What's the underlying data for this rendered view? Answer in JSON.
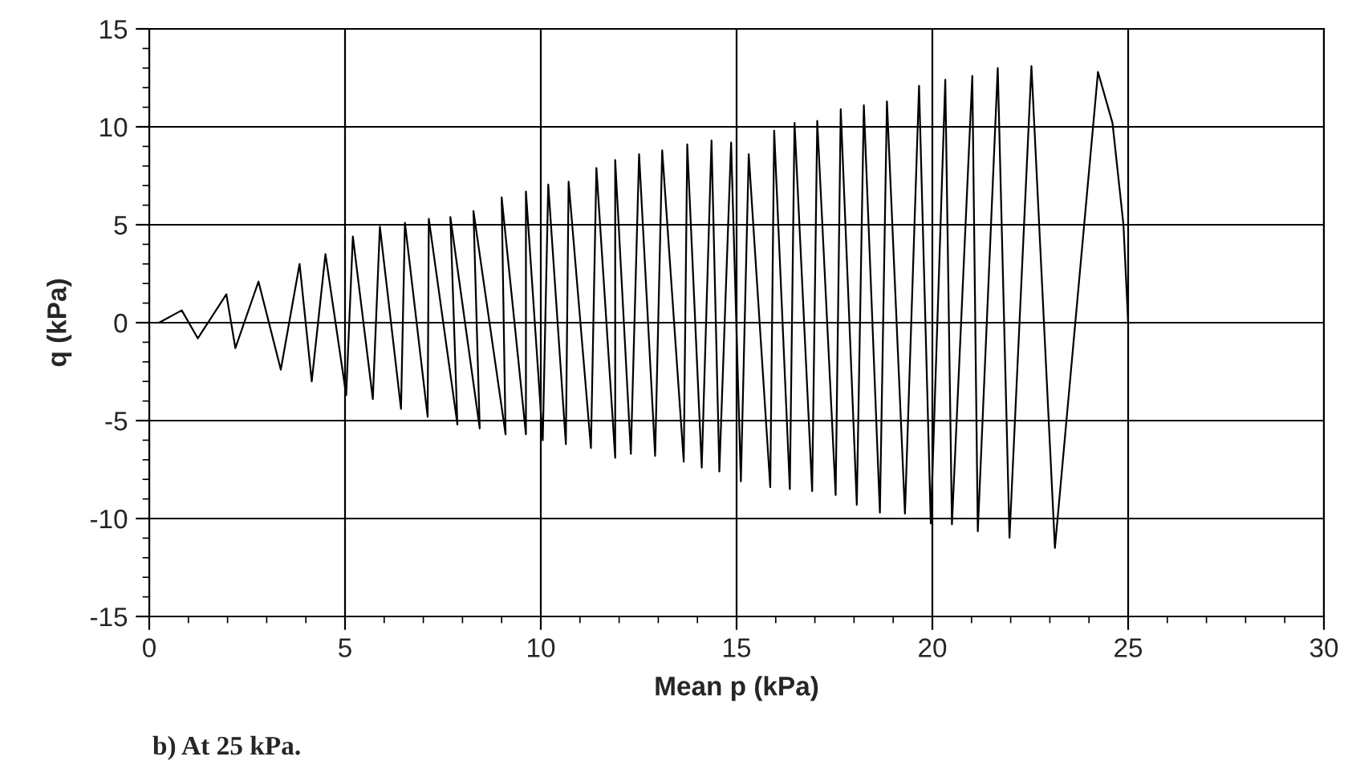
{
  "chart_data": {
    "type": "line",
    "xlabel": "Mean p (kPa)",
    "ylabel": "q (kPa)",
    "annotations": [
      "b) At 25 kPa."
    ],
    "xlim": [
      0,
      30
    ],
    "xticks": [
      0,
      5,
      10,
      15,
      20,
      25,
      30
    ],
    "ylim": [
      -15,
      15
    ],
    "yticks": [
      -15,
      -10,
      -5,
      0,
      5,
      10,
      15
    ],
    "grid": true,
    "legend": false,
    "marker": "none",
    "line_style": "solid",
    "series": [
      {
        "color": "#000000",
        "x": [
          0.25,
          0.83,
          1.24,
          1.97,
          2.2,
          2.79,
          3.36,
          3.84,
          4.15,
          4.5,
          5.03,
          5.2,
          5.71,
          5.89,
          6.43,
          6.53,
          7.11,
          7.14,
          7.87,
          7.69,
          8.44,
          8.28,
          9.1,
          9.0,
          9.62,
          9.62,
          10.05,
          10.19,
          10.64,
          10.71,
          11.28,
          11.42,
          11.9,
          11.9,
          12.3,
          12.51,
          12.92,
          13.1,
          13.65,
          13.74,
          14.11,
          14.36,
          14.56,
          14.86,
          15.11,
          15.31,
          15.86,
          15.96,
          16.36,
          16.48,
          16.93,
          17.06,
          17.53,
          17.66,
          18.07,
          18.25,
          18.66,
          18.84,
          19.3,
          19.66,
          19.96,
          20.33,
          20.5,
          21.02,
          21.16,
          21.67,
          21.97,
          22.53,
          23.13,
          24.23,
          24.6,
          24.88,
          25.0
        ],
        "values": [
          0,
          0.63,
          -0.8,
          1.45,
          -1.3,
          2.1,
          -2.4,
          3.0,
          -3.0,
          3.5,
          -3.7,
          4.4,
          -3.9,
          4.9,
          -4.4,
          5.1,
          -4.8,
          5.3,
          -5.2,
          5.4,
          -5.4,
          5.7,
          -5.7,
          6.4,
          -5.7,
          6.7,
          -6.0,
          7.05,
          -6.2,
          7.2,
          -6.4,
          7.9,
          -6.9,
          8.3,
          -6.7,
          8.6,
          -6.8,
          8.8,
          -7.1,
          9.1,
          -7.4,
          9.3,
          -7.6,
          9.2,
          -8.1,
          8.6,
          -8.4,
          9.8,
          -8.5,
          10.2,
          -8.6,
          10.3,
          -8.8,
          10.9,
          -9.3,
          11.1,
          -9.7,
          11.3,
          -9.75,
          12.1,
          -10.25,
          12.4,
          -10.3,
          12.6,
          -10.65,
          13.0,
          -10.98,
          13.1,
          -11.5,
          12.8,
          10.2,
          5.0,
          0
        ]
      }
    ]
  }
}
